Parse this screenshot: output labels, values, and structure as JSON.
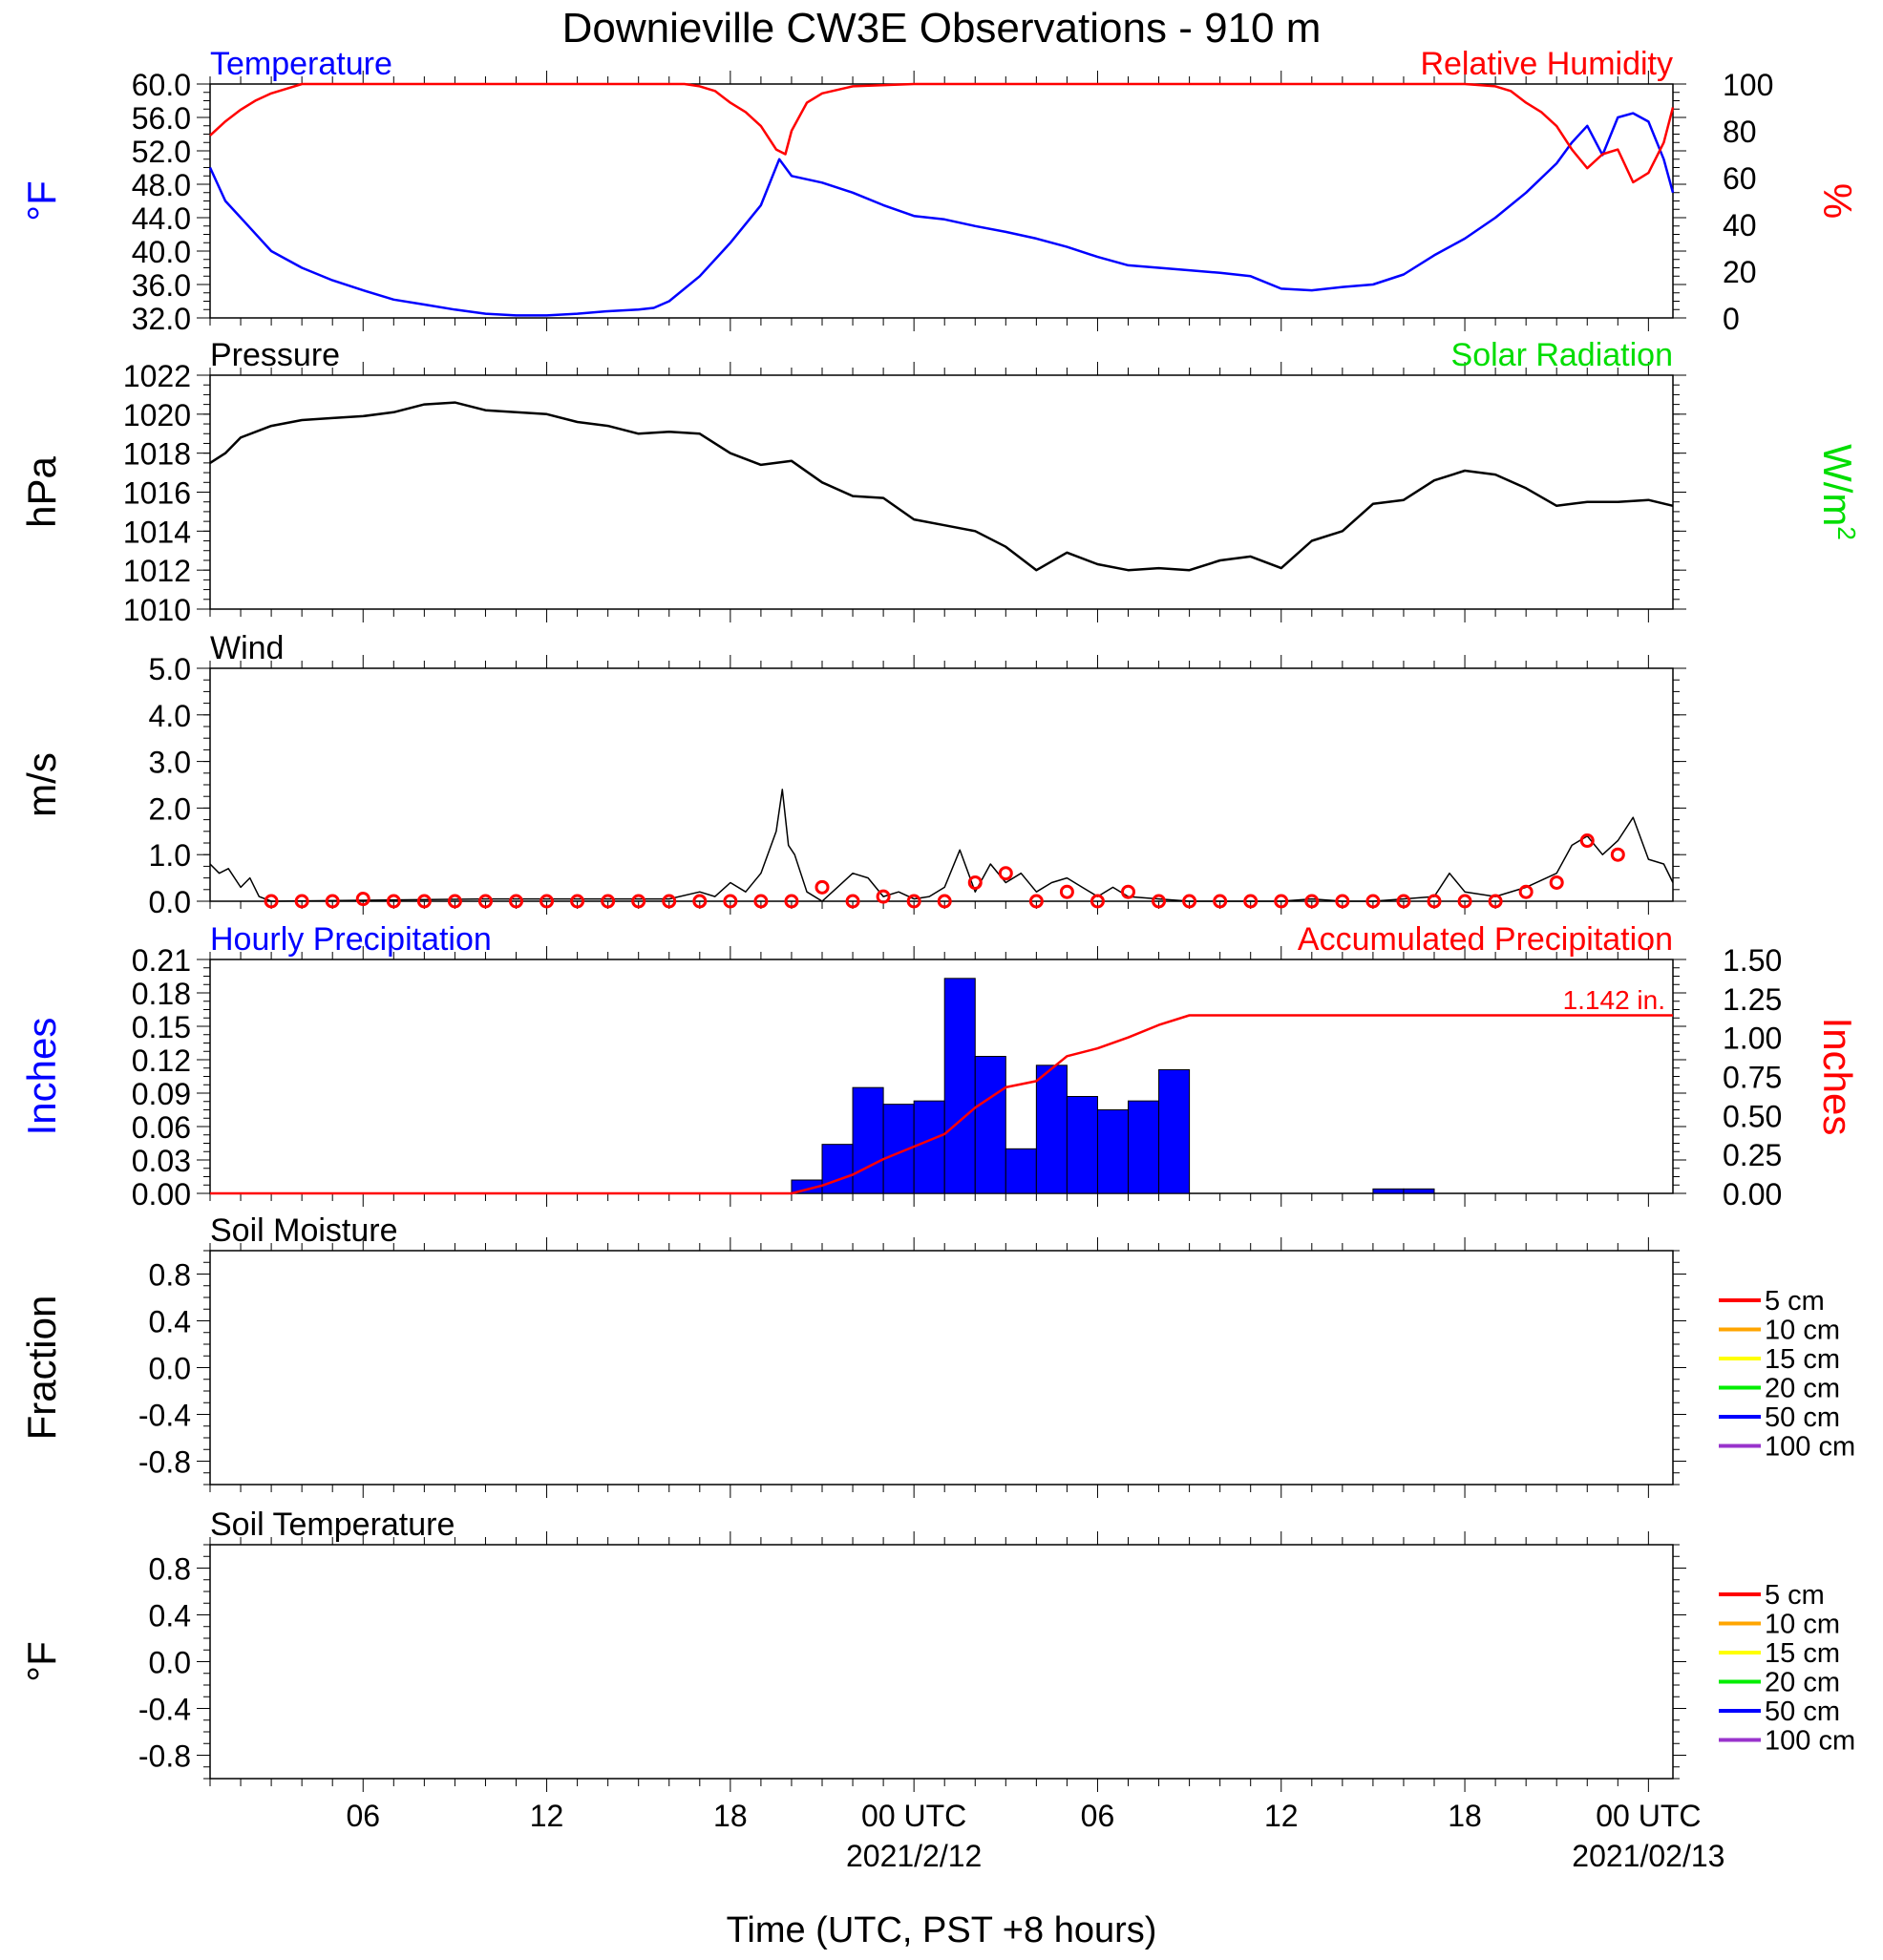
{
  "title": "Downieville CW3E Observations - 910 m",
  "x_axis": {
    "label": "Time (UTC, PST +8 hours)",
    "ticks": [
      {
        "h": 6,
        "label": "06"
      },
      {
        "h": 12,
        "label": "12"
      },
      {
        "h": 18,
        "label": "18"
      },
      {
        "h": 24,
        "label": "00 UTC",
        "date": "2021/2/12"
      },
      {
        "h": 30,
        "label": "06"
      },
      {
        "h": 36,
        "label": "12"
      },
      {
        "h": 42,
        "label": "18"
      },
      {
        "h": 48,
        "label": "00 UTC",
        "date": "2021/02/13"
      }
    ],
    "range_hours": [
      1,
      48.8
    ]
  },
  "colors": {
    "blue": "#0000ff",
    "red": "#ff0000",
    "green": "#00dd00",
    "black": "#000000"
  },
  "chart_data": [
    {
      "id": "temp_rh",
      "type": "line",
      "left_title": "Temperature",
      "right_title": "Relative Humidity",
      "left_unit": "°F",
      "right_unit": "%",
      "left_ticks": [
        "60.0",
        "56.0",
        "52.0",
        "48.0",
        "44.0",
        "40.0",
        "36.0",
        "32.0"
      ],
      "right_ticks": [
        "100",
        "80",
        "60",
        "40",
        "20",
        "0"
      ],
      "ylim_left": [
        32,
        60
      ],
      "ylim_right": [
        0,
        100
      ],
      "series": [
        {
          "name": "Temperature",
          "color": "#0000ff",
          "axis": "left",
          "x": [
            1,
            1.5,
            2,
            3,
            4,
            5,
            6,
            7,
            8,
            9,
            10,
            11,
            12,
            13,
            14,
            15,
            15.5,
            16,
            17,
            18,
            19,
            19.6,
            20,
            21,
            22,
            23,
            24,
            25,
            26,
            27,
            28,
            29,
            30,
            31,
            32,
            33,
            34,
            35,
            36,
            37,
            38,
            39,
            40,
            41,
            42,
            43,
            44,
            45,
            45.5,
            46,
            46.5,
            47,
            47.5,
            48,
            48.5,
            48.8
          ],
          "y": [
            50,
            46,
            44,
            40,
            38,
            36.5,
            35.3,
            34.2,
            33.6,
            33,
            32.5,
            32.3,
            32.3,
            32.5,
            32.8,
            33,
            33.2,
            34,
            37,
            41,
            45.5,
            51,
            49,
            48.2,
            47,
            45.5,
            44.2,
            43.8,
            43,
            42.3,
            41.5,
            40.5,
            39.3,
            38.3,
            38,
            37.7,
            37.4,
            37,
            35.5,
            35.3,
            35.7,
            36,
            37.2,
            39.5,
            41.5,
            44,
            47,
            50.5,
            53,
            55,
            51.5,
            56,
            56.5,
            55.5,
            51,
            47
          ]
        },
        {
          "name": "Relative Humidity",
          "color": "#ff0000",
          "axis": "right",
          "x": [
            1,
            1.5,
            2,
            2.5,
            3,
            3.5,
            4,
            4.5,
            5,
            6,
            10,
            15,
            16.5,
            17,
            17.5,
            18,
            18.5,
            19,
            19.5,
            19.8,
            20,
            20.5,
            21,
            22,
            24,
            30,
            36,
            42,
            43,
            43.5,
            44,
            44.5,
            45,
            45.5,
            46,
            46.5,
            47,
            47.5,
            48,
            48.5,
            48.8
          ],
          "y": [
            78,
            84,
            89,
            93,
            96,
            98,
            100,
            100,
            100,
            100,
            100,
            100,
            100,
            99,
            97,
            92,
            88,
            82,
            72,
            70,
            80,
            92,
            96,
            99,
            100,
            100,
            100,
            100,
            99,
            97,
            92,
            88,
            82,
            72,
            64,
            70,
            72,
            58,
            62,
            75,
            90
          ]
        }
      ]
    },
    {
      "id": "pressure",
      "type": "line",
      "left_title": "Pressure",
      "right_title": "Solar Radiation",
      "left_unit": "hPa",
      "right_unit": "W/m",
      "right_unit_sup": "2",
      "left_ticks": [
        "1022",
        "1020",
        "1018",
        "1016",
        "1014",
        "1012",
        "1010"
      ],
      "ylim_left": [
        1010,
        1022
      ],
      "series": [
        {
          "name": "Pressure",
          "color": "#000000",
          "axis": "left",
          "x": [
            1,
            1.5,
            2,
            3,
            4,
            5,
            6,
            7,
            8,
            9,
            10,
            11,
            12,
            13,
            14,
            15,
            16,
            17,
            18,
            19,
            20,
            21,
            22,
            23,
            24,
            25,
            26,
            27,
            28,
            29,
            30,
            31,
            32,
            33,
            34,
            35,
            36,
            37,
            38,
            39,
            40,
            41,
            42,
            43,
            44,
            45,
            46,
            47,
            48,
            48.8
          ],
          "y": [
            1017.5,
            1018,
            1018.8,
            1019.4,
            1019.7,
            1019.8,
            1019.9,
            1020.1,
            1020.5,
            1020.6,
            1020.2,
            1020.1,
            1020,
            1019.6,
            1019.4,
            1019,
            1019.1,
            1019,
            1018,
            1017.4,
            1017.6,
            1016.5,
            1015.8,
            1015.7,
            1014.6,
            1014.3,
            1014,
            1013.2,
            1012,
            1012.9,
            1012.3,
            1012,
            1012.1,
            1012,
            1012.5,
            1012.7,
            1012.1,
            1013.5,
            1014,
            1015.4,
            1015.6,
            1016.6,
            1017.1,
            1016.9,
            1016.2,
            1015.3,
            1015.5,
            1015.5,
            1015.6,
            1015.3
          ]
        }
      ]
    },
    {
      "id": "wind",
      "type": "line",
      "left_title": "Wind",
      "left_unit": "m/s",
      "left_ticks": [
        "5.0",
        "4.0",
        "3.0",
        "2.0",
        "1.0",
        "0.0"
      ],
      "ylim_left": [
        0,
        5
      ],
      "series": [
        {
          "name": "Wind",
          "color": "#000000",
          "axis": "left",
          "x": [
            1,
            1.3,
            1.6,
            2,
            2.3,
            2.6,
            3,
            10,
            16,
            17,
            17.5,
            18,
            18.5,
            19,
            19.5,
            19.7,
            19.9,
            20.1,
            20.5,
            21,
            21.5,
            22,
            22.5,
            23,
            23.5,
            24,
            24.5,
            25,
            25.5,
            26,
            26.5,
            27,
            27.5,
            28,
            28.5,
            29,
            29.5,
            30,
            30.5,
            31,
            32,
            33,
            34,
            35,
            36,
            37,
            38,
            39,
            40,
            41,
            41.5,
            42,
            43,
            44,
            45,
            45.5,
            46,
            46.5,
            47,
            47.5,
            48,
            48.5,
            48.8
          ],
          "y": [
            0.8,
            0.6,
            0.7,
            0.3,
            0.5,
            0.1,
            0,
            0.05,
            0.05,
            0.2,
            0.1,
            0.4,
            0.2,
            0.6,
            1.5,
            2.4,
            1.2,
            1.0,
            0.2,
            0,
            0.3,
            0.6,
            0.5,
            0.1,
            0.2,
            0.05,
            0.1,
            0.3,
            1.1,
            0.2,
            0.8,
            0.4,
            0.6,
            0.2,
            0.4,
            0.5,
            0.3,
            0.1,
            0.3,
            0.1,
            0.05,
            0,
            0,
            0,
            0,
            0.05,
            0,
            0,
            0.05,
            0.1,
            0.6,
            0.2,
            0.1,
            0.3,
            0.6,
            1.2,
            1.4,
            1.0,
            1.3,
            1.8,
            0.9,
            0.8,
            0.4
          ]
        }
      ],
      "barb_hours": [
        3,
        4,
        5,
        6,
        7,
        8,
        9,
        10,
        11,
        12,
        13,
        14,
        15,
        16,
        17,
        18,
        19,
        20,
        21,
        22,
        23,
        24,
        25,
        26,
        27,
        28,
        29,
        30,
        31,
        32,
        33,
        34,
        35,
        36,
        37,
        38,
        39,
        40,
        41,
        42,
        43,
        44,
        45,
        46,
        47
      ],
      "barb_values": [
        0,
        0,
        0,
        0.05,
        0,
        0,
        0,
        0,
        0,
        0,
        0,
        0,
        0,
        0,
        0,
        0,
        0,
        0,
        0.3,
        0,
        0.1,
        0,
        0,
        0.4,
        0.6,
        0,
        0.2,
        0,
        0.2,
        0,
        0,
        0,
        0,
        0,
        0,
        0,
        0,
        0,
        0,
        0,
        0,
        0.2,
        0.4,
        1.3,
        1.0
      ]
    },
    {
      "id": "precip",
      "type": "bar",
      "left_title": "Hourly Precipitation",
      "right_title": "Accumulated Precipitation",
      "left_unit": "Inches",
      "right_unit": "Inches",
      "left_ticks": [
        "0.21",
        "0.18",
        "0.15",
        "0.12",
        "0.09",
        "0.06",
        "0.03",
        "0.00"
      ],
      "right_ticks": [
        "1.50",
        "1.25",
        "1.00",
        "0.75",
        "0.50",
        "0.25",
        "0.00"
      ],
      "ylim_left": [
        0,
        0.21
      ],
      "ylim_right": [
        0,
        1.5
      ],
      "annotation": "1.142 in.",
      "bars": {
        "start_hours": [
          20,
          21,
          22,
          23,
          24,
          25,
          26,
          27,
          28,
          29,
          30,
          31,
          32,
          39,
          40
        ],
        "values": [
          0.012,
          0.044,
          0.095,
          0.08,
          0.083,
          0.193,
          0.123,
          0.04,
          0.115,
          0.087,
          0.075,
          0.083,
          0.111,
          0.004,
          0.004
        ],
        "color": "#0000ff"
      },
      "series": [
        {
          "name": "Accumulated Precipitation",
          "color": "#ff0000",
          "axis": "right",
          "x": [
            1,
            20,
            21,
            22,
            23,
            24,
            25,
            26,
            27,
            28,
            29,
            30,
            31,
            32,
            33,
            48.8
          ],
          "y": [
            0,
            0,
            0.05,
            0.12,
            0.22,
            0.3,
            0.38,
            0.55,
            0.68,
            0.72,
            0.88,
            0.93,
            1.0,
            1.08,
            1.142,
            1.142
          ]
        }
      ]
    },
    {
      "id": "soil_moisture",
      "type": "line",
      "left_title": "Soil Moisture",
      "left_unit": "Fraction",
      "left_ticks": [
        "0.8",
        "0.4",
        "0.0",
        "-0.4",
        "-0.8"
      ],
      "ylim_left": [
        -1,
        1
      ],
      "legend": [
        {
          "name": "5 cm",
          "color": "#ff0000"
        },
        {
          "name": "10 cm",
          "color": "#ffa500"
        },
        {
          "name": "15 cm",
          "color": "#ffff00"
        },
        {
          "name": "20 cm",
          "color": "#00ee00"
        },
        {
          "name": "50 cm",
          "color": "#0000ff"
        },
        {
          "name": "100 cm",
          "color": "#9933cc"
        }
      ]
    },
    {
      "id": "soil_temp",
      "type": "line",
      "left_title": "Soil Temperature",
      "left_unit": "°F",
      "left_ticks": [
        "0.8",
        "0.4",
        "0.0",
        "-0.4",
        "-0.8"
      ],
      "ylim_left": [
        -1,
        1
      ],
      "legend": [
        {
          "name": "5 cm",
          "color": "#ff0000"
        },
        {
          "name": "10 cm",
          "color": "#ffa500"
        },
        {
          "name": "15 cm",
          "color": "#ffff00"
        },
        {
          "name": "20 cm",
          "color": "#00ee00"
        },
        {
          "name": "50 cm",
          "color": "#0000ff"
        },
        {
          "name": "100 cm",
          "color": "#9933cc"
        }
      ]
    }
  ]
}
